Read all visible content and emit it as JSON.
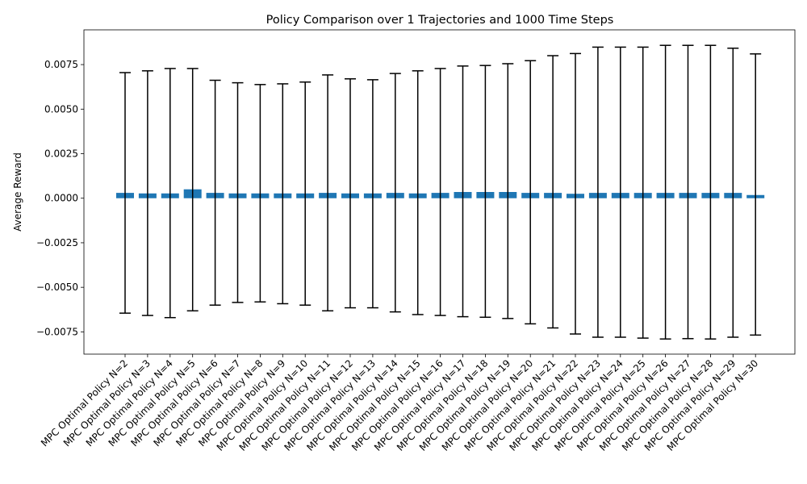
{
  "chart_data": {
    "type": "bar",
    "title": "Policy Comparison over 1 Trajectories and 1000 Time Steps",
    "xlabel": "",
    "ylabel": "Average Reward",
    "ylim": [
      -0.00875,
      0.00945
    ],
    "yticks": [
      -0.0075,
      -0.005,
      -0.0025,
      0.0,
      0.0025,
      0.005,
      0.0075
    ],
    "ytick_labels": [
      "−0.0075",
      "−0.0050",
      "−0.0025",
      "0.0000",
      "0.0025",
      "0.0050",
      "0.0075"
    ],
    "grid": false,
    "bar_color": "#1f77b4",
    "error_color": "#000000",
    "categories": [
      "MPC Optimal Policy N=2",
      "MPC Optimal Policy N=3",
      "MPC Optimal Policy N=4",
      "MPC Optimal Policy N=5",
      "MPC Optimal Policy N=6",
      "MPC Optimal Policy N=7",
      "MPC Optimal Policy N=8",
      "MPC Optimal Policy N=9",
      "MPC Optimal Policy N=10",
      "MPC Optimal Policy N=11",
      "MPC Optimal Policy N=12",
      "MPC Optimal Policy N=13",
      "MPC Optimal Policy N=14",
      "MPC Optimal Policy N=15",
      "MPC Optimal Policy N=16",
      "MPC Optimal Policy N=17",
      "MPC Optimal Policy N=18",
      "MPC Optimal Policy N=19",
      "MPC Optimal Policy N=20",
      "MPC Optimal Policy N=21",
      "MPC Optimal Policy N=22",
      "MPC Optimal Policy N=23",
      "MPC Optimal Policy N=24",
      "MPC Optimal Policy N=25",
      "MPC Optimal Policy N=26",
      "MPC Optimal Policy N=27",
      "MPC Optimal Policy N=28",
      "MPC Optimal Policy N=29",
      "MPC Optimal Policy N=30"
    ],
    "values": [
      0.0003,
      0.00027,
      0.00027,
      0.0005,
      0.0003,
      0.00027,
      0.00027,
      0.00027,
      0.00027,
      0.0003,
      0.00027,
      0.00027,
      0.0003,
      0.00027,
      0.0003,
      0.00035,
      0.00035,
      0.00035,
      0.0003,
      0.0003,
      0.00025,
      0.0003,
      0.0003,
      0.0003,
      0.0003,
      0.0003,
      0.0003,
      0.0003,
      0.00018
    ],
    "error_low": [
      -0.00645,
      -0.00658,
      -0.0067,
      -0.00632,
      -0.006,
      -0.00585,
      -0.00582,
      -0.00592,
      -0.006,
      -0.00632,
      -0.00615,
      -0.00615,
      -0.00638,
      -0.00653,
      -0.00658,
      -0.00665,
      -0.00668,
      -0.00675,
      -0.00705,
      -0.00728,
      -0.00762,
      -0.0078,
      -0.0078,
      -0.00785,
      -0.0079,
      -0.00788,
      -0.0079,
      -0.0078,
      -0.00768
    ],
    "error_high": [
      0.00705,
      0.00715,
      0.00728,
      0.00728,
      0.00662,
      0.00648,
      0.00638,
      0.00642,
      0.00652,
      0.00692,
      0.0067,
      0.00665,
      0.007,
      0.00715,
      0.00728,
      0.00742,
      0.00745,
      0.00755,
      0.00772,
      0.008,
      0.00812,
      0.00848,
      0.00848,
      0.00848,
      0.00858,
      0.00858,
      0.00858,
      0.00842,
      0.0081
    ]
  }
}
